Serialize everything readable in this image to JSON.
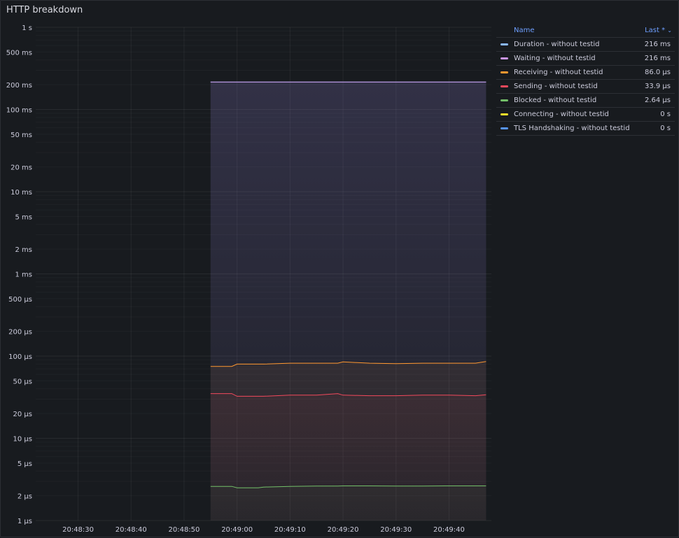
{
  "panel": {
    "title": "HTTP breakdown"
  },
  "legend": {
    "name_header": "Name",
    "value_header": "Last *",
    "sort_icon": "chevron-down-icon",
    "items": [
      {
        "name": "Duration - without testid",
        "value": "216 ms",
        "color": "#8ab8ff"
      },
      {
        "name": "Waiting - without testid",
        "value": "216 ms",
        "color": "#ca95e5"
      },
      {
        "name": "Receiving - without testid",
        "value": "86.0 µs",
        "color": "#ff9830"
      },
      {
        "name": "Sending - without testid",
        "value": "33.9 µs",
        "color": "#f2495c"
      },
      {
        "name": "Blocked - without testid",
        "value": "2.64 µs",
        "color": "#73bf69"
      },
      {
        "name": "Connecting - without testid",
        "value": "0 s",
        "color": "#fade2a"
      },
      {
        "name": "TLS Handshaking - without testid",
        "value": "0 s",
        "color": "#5794f2"
      }
    ]
  },
  "chart_data": {
    "type": "line",
    "title": "HTTP breakdown",
    "y_scale": "log",
    "y_unit": "seconds",
    "ylim": [
      1e-06,
      1
    ],
    "y_ticks": [
      "1 s",
      "500 ms",
      "200 ms",
      "100 ms",
      "50 ms",
      "20 ms",
      "10 ms",
      "5 ms",
      "2 ms",
      "1 ms",
      "500 µs",
      "200 µs",
      "100 µs",
      "50 µs",
      "20 µs",
      "10 µs",
      "5 µs",
      "2 µs",
      "1 µs"
    ],
    "x_ticks": [
      "20:48:30",
      "20:48:40",
      "20:48:50",
      "20:49:00",
      "20:49:10",
      "20:49:20",
      "20:49:30",
      "20:49:40"
    ],
    "xlim": [
      "20:48:22",
      "20:49:48"
    ],
    "grid": true,
    "legend_position": "right",
    "x": [
      "20:48:55",
      "20:48:59",
      "20:49:00",
      "20:49:04",
      "20:49:05",
      "20:49:10",
      "20:49:15",
      "20:49:19",
      "20:49:20",
      "20:49:25",
      "20:49:30",
      "20:49:35",
      "20:49:40",
      "20:49:45",
      "20:49:47"
    ],
    "series": [
      {
        "name": "Duration - without testid",
        "unit": "ms",
        "values": [
          216,
          216,
          216,
          216,
          216,
          216,
          216,
          216,
          216,
          216,
          216,
          216,
          216,
          216,
          216
        ]
      },
      {
        "name": "Waiting - without testid",
        "unit": "ms",
        "values": [
          216,
          216,
          216,
          216,
          216,
          216,
          216,
          216,
          216,
          216,
          216,
          216,
          216,
          216,
          216
        ]
      },
      {
        "name": "Receiving - without testid",
        "unit": "µs",
        "values": [
          75,
          75,
          80,
          80,
          80,
          82,
          82,
          82,
          85,
          82,
          81,
          82,
          82,
          82,
          86
        ]
      },
      {
        "name": "Sending - without testid",
        "unit": "µs",
        "values": [
          35,
          35,
          32.5,
          32.5,
          32.5,
          33.5,
          33.5,
          35,
          33.5,
          33,
          33,
          33.5,
          33.5,
          33,
          33.9
        ]
      },
      {
        "name": "Blocked - without testid",
        "unit": "µs",
        "values": [
          2.6,
          2.6,
          2.5,
          2.5,
          2.55,
          2.6,
          2.62,
          2.63,
          2.64,
          2.64,
          2.63,
          2.63,
          2.64,
          2.64,
          2.64
        ]
      },
      {
        "name": "Connecting - without testid",
        "unit": "s",
        "values": [
          0,
          0,
          0,
          0,
          0,
          0,
          0,
          0,
          0,
          0,
          0,
          0,
          0,
          0,
          0
        ]
      },
      {
        "name": "TLS Handshaking - without testid",
        "unit": "s",
        "values": [
          0,
          0,
          0,
          0,
          0,
          0,
          0,
          0,
          0,
          0,
          0,
          0,
          0,
          0,
          0
        ]
      }
    ]
  }
}
